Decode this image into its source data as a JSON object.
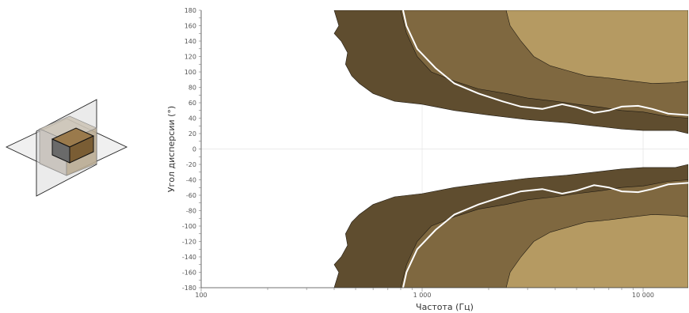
{
  "chart_data": {
    "type": "heatmap",
    "title": "",
    "xlabel": "Частота (Гц)",
    "ylabel": "Угол дисперсии (°)",
    "x_scale": "log",
    "xlim": [
      100,
      16000
    ],
    "ylim": [
      -180,
      180
    ],
    "x_ticks": [
      {
        "value": 100,
        "label": "100"
      },
      {
        "value": 1000,
        "label": "1 000"
      },
      {
        "value": 10000,
        "label": "10 000"
      }
    ],
    "y_ticks": [
      {
        "value": 180,
        "label": "180"
      },
      {
        "value": 160,
        "label": "160"
      },
      {
        "value": 140,
        "label": "140"
      },
      {
        "value": 120,
        "label": "120"
      },
      {
        "value": 100,
        "label": "100"
      },
      {
        "value": 80,
        "label": "80"
      },
      {
        "value": 60,
        "label": "60"
      },
      {
        "value": 40,
        "label": "40"
      },
      {
        "value": 20,
        "label": "20"
      },
      {
        "value": 0,
        "label": "0"
      },
      {
        "value": -20,
        "label": "-20"
      },
      {
        "value": -40,
        "label": "-40"
      },
      {
        "value": -60,
        "label": "-60"
      },
      {
        "value": -80,
        "label": "-80"
      },
      {
        "value": -100,
        "label": "-100"
      },
      {
        "value": -120,
        "label": "-120"
      },
      {
        "value": -140,
        "label": "-140"
      },
      {
        "value": -160,
        "label": "-160"
      },
      {
        "value": -180,
        "label": "-180"
      }
    ],
    "grid": true,
    "colors": {
      "level_outer": "#5f4d2f",
      "level_middle": "#7f6840",
      "level_inner": "#b59a62",
      "contour_white": "#ffffff",
      "grid": "#e4e4e4"
    },
    "contours": [
      {
        "level": "outer",
        "upper": [
          [
            400,
            180
          ],
          [
            420,
            160
          ],
          [
            400,
            150
          ],
          [
            430,
            140
          ],
          [
            460,
            125
          ],
          [
            450,
            110
          ],
          [
            480,
            95
          ],
          [
            520,
            85
          ],
          [
            600,
            72
          ],
          [
            750,
            62
          ],
          [
            1000,
            58
          ],
          [
            1400,
            50
          ],
          [
            2000,
            44
          ],
          [
            3000,
            38
          ],
          [
            4500,
            34
          ],
          [
            6000,
            30
          ],
          [
            8000,
            26
          ],
          [
            10000,
            24
          ],
          [
            14000,
            24
          ],
          [
            16000,
            20
          ]
        ],
        "lower": [
          [
            400,
            -180
          ],
          [
            420,
            -160
          ],
          [
            400,
            -150
          ],
          [
            430,
            -140
          ],
          [
            460,
            -125
          ],
          [
            450,
            -110
          ],
          [
            480,
            -95
          ],
          [
            520,
            -85
          ],
          [
            600,
            -72
          ],
          [
            750,
            -62
          ],
          [
            1000,
            -58
          ],
          [
            1400,
            -50
          ],
          [
            2000,
            -44
          ],
          [
            3000,
            -38
          ],
          [
            4500,
            -34
          ],
          [
            6000,
            -30
          ],
          [
            8000,
            -26
          ],
          [
            10000,
            -24
          ],
          [
            14000,
            -24
          ],
          [
            16000,
            -20
          ]
        ]
      },
      {
        "level": "middle",
        "upper": [
          [
            800,
            180
          ],
          [
            850,
            150
          ],
          [
            950,
            120
          ],
          [
            1100,
            100
          ],
          [
            1400,
            88
          ],
          [
            1800,
            78
          ],
          [
            2400,
            72
          ],
          [
            3000,
            66
          ],
          [
            4000,
            62
          ],
          [
            5000,
            58
          ],
          [
            6500,
            54
          ],
          [
            8000,
            50
          ],
          [
            10000,
            48
          ],
          [
            13000,
            42
          ],
          [
            16000,
            40
          ]
        ],
        "lower": [
          [
            800,
            -180
          ],
          [
            850,
            -150
          ],
          [
            950,
            -120
          ],
          [
            1100,
            -100
          ],
          [
            1400,
            -88
          ],
          [
            1800,
            -78
          ],
          [
            2400,
            -72
          ],
          [
            3000,
            -66
          ],
          [
            4000,
            -62
          ],
          [
            5000,
            -58
          ],
          [
            6500,
            -54
          ],
          [
            8000,
            -50
          ],
          [
            10000,
            -48
          ],
          [
            13000,
            -42
          ],
          [
            16000,
            -40
          ]
        ]
      },
      {
        "level": "inner",
        "upper": [
          [
            2400,
            180
          ],
          [
            2500,
            160
          ],
          [
            2800,
            140
          ],
          [
            3200,
            120
          ],
          [
            3800,
            108
          ],
          [
            4500,
            102
          ],
          [
            5500,
            95
          ],
          [
            7000,
            92
          ],
          [
            9000,
            88
          ],
          [
            11000,
            85
          ],
          [
            14000,
            86
          ],
          [
            16000,
            88
          ]
        ],
        "lower": [
          [
            2400,
            -180
          ],
          [
            2500,
            -160
          ],
          [
            2800,
            -140
          ],
          [
            3200,
            -120
          ],
          [
            3800,
            -108
          ],
          [
            4500,
            -102
          ],
          [
            5500,
            -95
          ],
          [
            7000,
            -92
          ],
          [
            9000,
            -88
          ],
          [
            11000,
            -85
          ],
          [
            14000,
            -86
          ],
          [
            16000,
            -88
          ]
        ]
      }
    ],
    "white_curve": {
      "upper": [
        [
          820,
          180
        ],
        [
          850,
          160
        ],
        [
          950,
          130
        ],
        [
          1150,
          105
        ],
        [
          1400,
          85
        ],
        [
          1800,
          72
        ],
        [
          2300,
          62
        ],
        [
          2800,
          55
        ],
        [
          3500,
          52
        ],
        [
          4300,
          58
        ],
        [
          5000,
          54
        ],
        [
          6000,
          47
        ],
        [
          7000,
          50
        ],
        [
          8000,
          55
        ],
        [
          9500,
          56
        ],
        [
          11000,
          52
        ],
        [
          13000,
          46
        ],
        [
          16000,
          44
        ]
      ],
      "lower": [
        [
          820,
          -180
        ],
        [
          850,
          -160
        ],
        [
          950,
          -130
        ],
        [
          1150,
          -105
        ],
        [
          1400,
          -85
        ],
        [
          1800,
          -72
        ],
        [
          2300,
          -62
        ],
        [
          2800,
          -55
        ],
        [
          3500,
          -52
        ],
        [
          4300,
          -58
        ],
        [
          5000,
          -54
        ],
        [
          6000,
          -47
        ],
        [
          7000,
          -50
        ],
        [
          8000,
          -55
        ],
        [
          9500,
          -56
        ],
        [
          11000,
          -52
        ],
        [
          13000,
          -46
        ],
        [
          16000,
          -44
        ]
      ]
    },
    "thumbnail_icon": "dispersion-planes-box-icon"
  }
}
